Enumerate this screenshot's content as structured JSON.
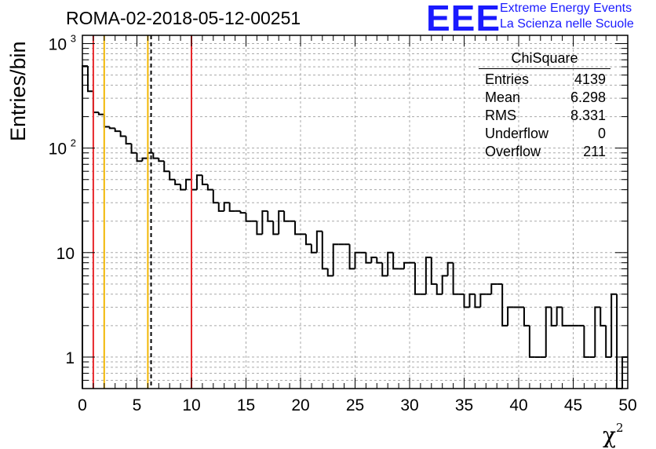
{
  "title": "ROMA-02-2018-05-12-00251",
  "logo": {
    "mark": "EEE",
    "line1": "Extreme Energy Events",
    "line2": "La Scienza nelle Scuole",
    "color": "#1a1aff"
  },
  "stats": {
    "title": "ChiSquare",
    "rows": [
      {
        "label": "Entries",
        "value": "4139"
      },
      {
        "label": "Mean",
        "value": "6.298"
      },
      {
        "label": "RMS",
        "value": "8.331"
      },
      {
        "label": "Underflow",
        "value": "0"
      },
      {
        "label": "Overflow",
        "value": "211"
      }
    ]
  },
  "chart_data": {
    "type": "histogram",
    "ylabel": "Entries/bin",
    "xlabel": "χ",
    "xlabel_sup": "2",
    "xlim": [
      0,
      50
    ],
    "ylim": [
      0.5,
      1200
    ],
    "yscale": "log",
    "grid": true,
    "bin_width": 0.5,
    "x_ticks": [
      "0",
      "5",
      "10",
      "15",
      "20",
      "25",
      "30",
      "35",
      "40",
      "45",
      "50"
    ],
    "y_ticks": [
      {
        "value": 1,
        "label": "1"
      },
      {
        "value": 10,
        "label": "10"
      },
      {
        "value": 100,
        "label": "10",
        "sup": "2"
      },
      {
        "value": 1000,
        "label": "10",
        "sup": "3"
      }
    ],
    "values": [
      610,
      350,
      220,
      210,
      160,
      155,
      145,
      130,
      110,
      90,
      75,
      80,
      90,
      80,
      75,
      60,
      50,
      45,
      40,
      50,
      40,
      55,
      45,
      40,
      30,
      25,
      30,
      25,
      25,
      24,
      20,
      20,
      15,
      25,
      20,
      15,
      25,
      20,
      20,
      15,
      15,
      12,
      10,
      16,
      7,
      6,
      12,
      12,
      12,
      7,
      10,
      10,
      8,
      9,
      8,
      6,
      10,
      7,
      7,
      8,
      8,
      4,
      4,
      9,
      5,
      4,
      6,
      8,
      4,
      4,
      3,
      4,
      3,
      4,
      4,
      5,
      5,
      2,
      3,
      3,
      3,
      2,
      1,
      1,
      1,
      3,
      2,
      3,
      2,
      2,
      2,
      2,
      1,
      1,
      3,
      2,
      1,
      4,
      0.5,
      1
    ],
    "vlines": [
      {
        "x": 1.0,
        "color": "#e8262a",
        "style": "solid"
      },
      {
        "x": 2.0,
        "color": "#f2b705",
        "style": "solid"
      },
      {
        "x": 6.0,
        "color": "#f2b705",
        "style": "solid"
      },
      {
        "x": 6.298,
        "color": "#000000",
        "style": "dashed"
      },
      {
        "x": 10.0,
        "color": "#e8262a",
        "style": "solid"
      }
    ]
  }
}
